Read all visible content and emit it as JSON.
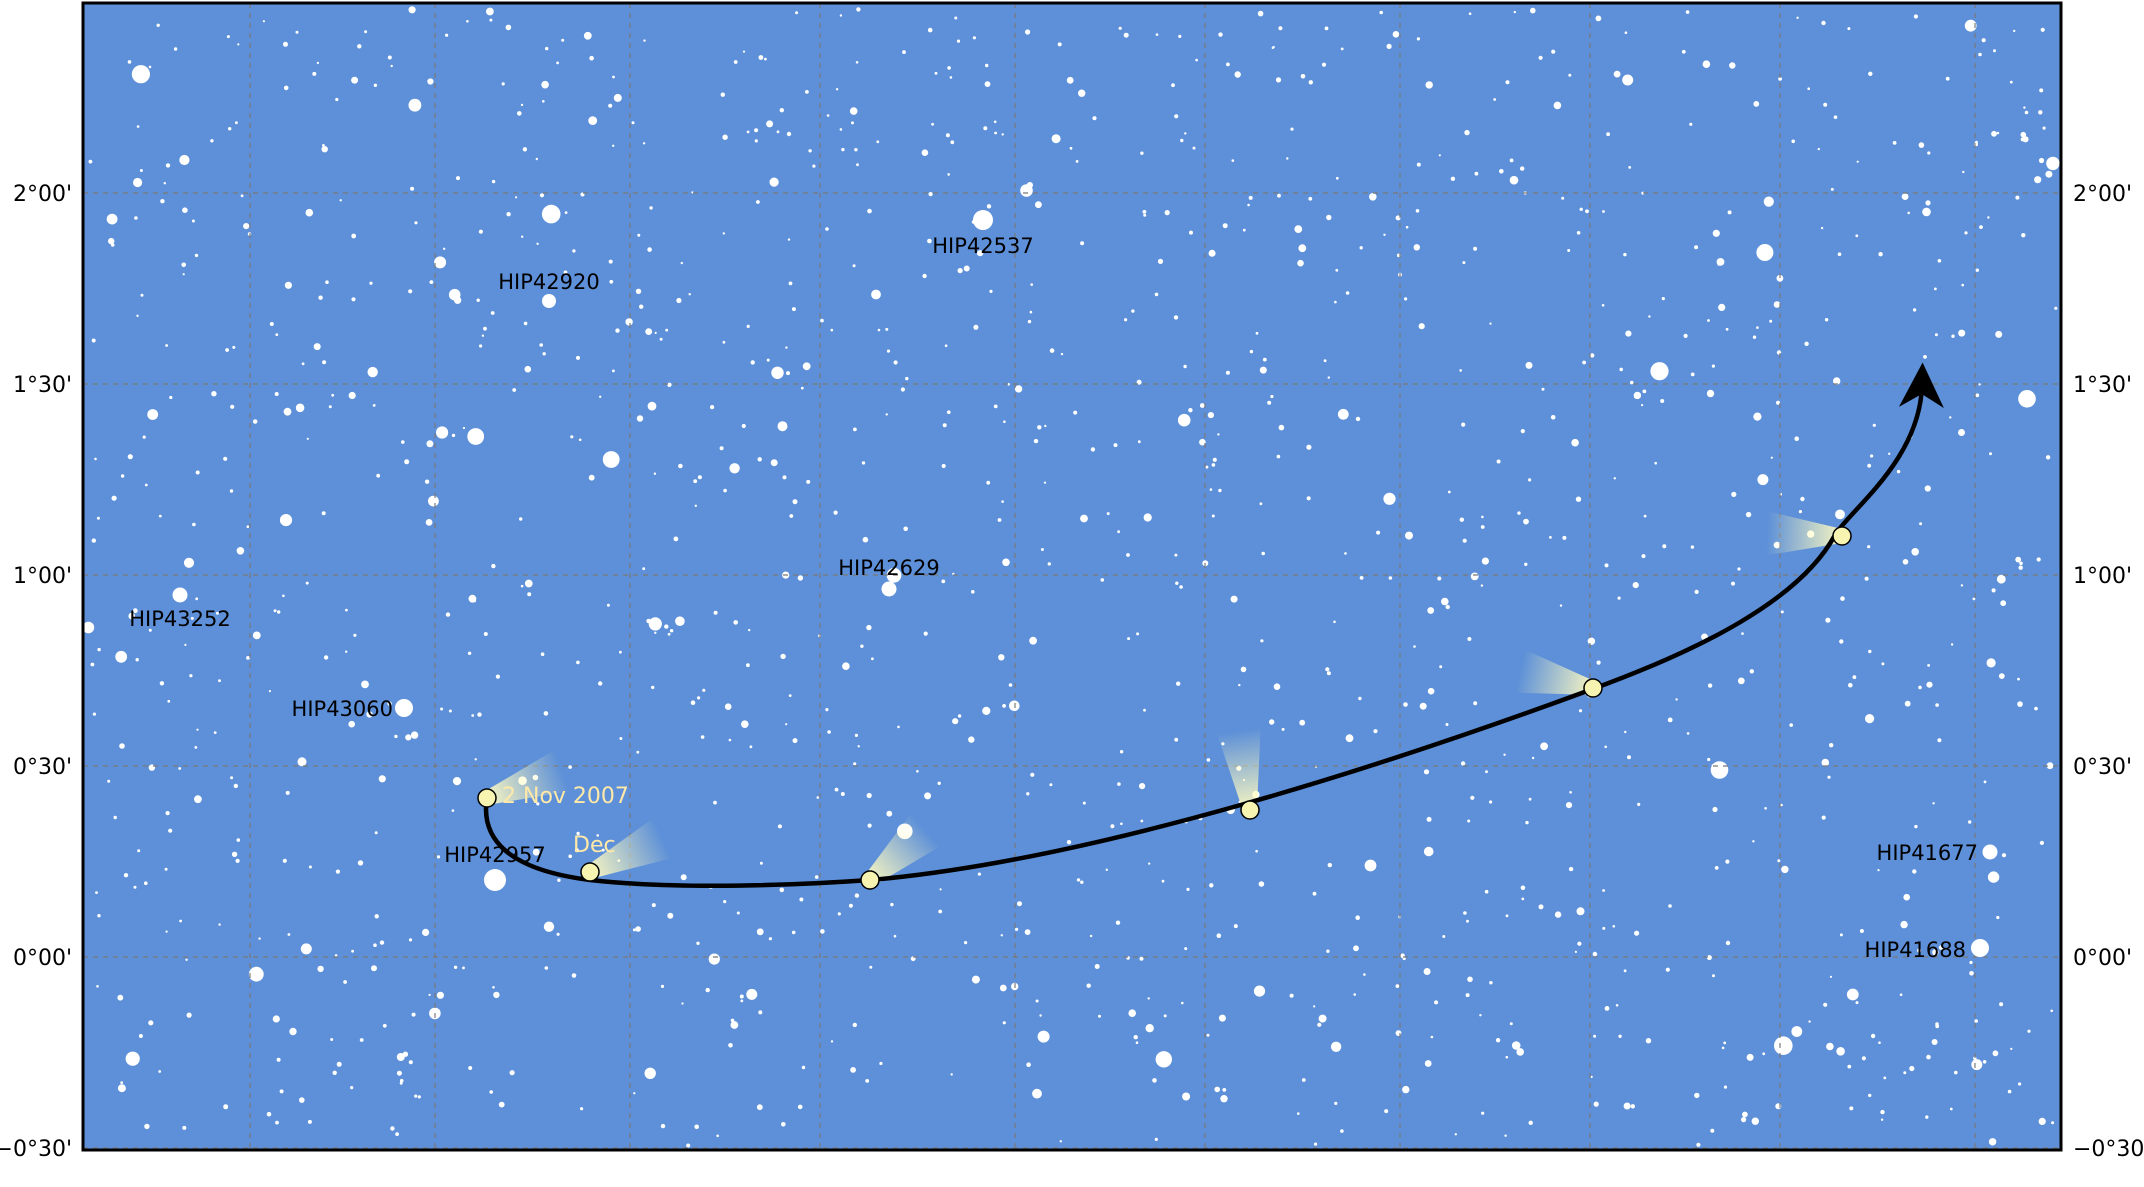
{
  "map": {
    "background_color": "#5d90d8",
    "frame_color": "#000000",
    "path_color": "#000000",
    "comet_head_color": "#f6f4b0",
    "comet_tail_color": "#fffbc0",
    "dec_axis": {
      "min": -0.6,
      "max": 2.5
    },
    "dec_labels": [
      {
        "value": 2.0,
        "text": "2°00'"
      },
      {
        "value": 1.5,
        "text": "1°30'"
      },
      {
        "value": 1.0,
        "text": "1°00'"
      },
      {
        "value": 0.5,
        "text": "0°30'"
      },
      {
        "value": 0.0,
        "text": "0°00'"
      },
      {
        "value": -0.5,
        "text": "−0°30'"
      }
    ],
    "labeled_stars": [
      {
        "id": "HIP42537",
        "dec": 1.92
      },
      {
        "id": "HIP42920",
        "dec": 1.72
      },
      {
        "id": "HIP43252",
        "dec": 0.96
      },
      {
        "id": "HIP42629",
        "dec": 0.97
      },
      {
        "id": "HIP43060",
        "dec": 0.65
      },
      {
        "id": "HIP42957",
        "dec": 0.2
      },
      {
        "id": "HIP41677",
        "dec": 0.27
      },
      {
        "id": "HIP41688",
        "dec": 0.02
      }
    ],
    "date_labels": [
      {
        "text": "2 Nov 2007"
      },
      {
        "text": "Dec"
      }
    ]
  }
}
